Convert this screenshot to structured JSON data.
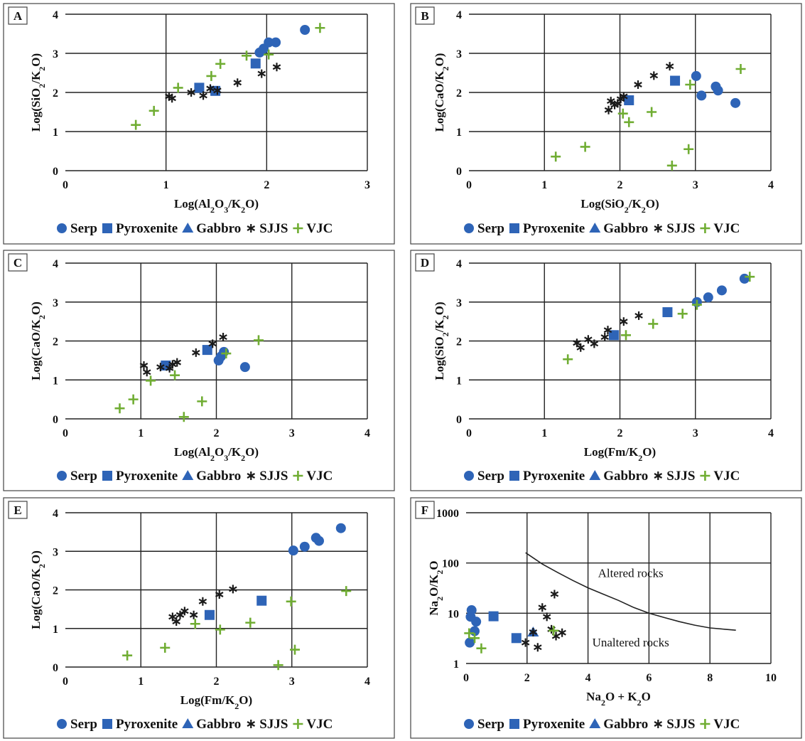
{
  "colors": {
    "serp": "#2e64b7",
    "pyroxenite": "#2e64b7",
    "gabbro": "#2e64b7",
    "sjjs": "#1a1a1a",
    "vjc": "#70ad33"
  },
  "legend": [
    {
      "key": "serp",
      "label": "Serp",
      "marker": "circle"
    },
    {
      "key": "pyroxenite",
      "label": "Pyroxenite",
      "marker": "square"
    },
    {
      "key": "gabbro",
      "label": "Gabbro",
      "marker": "triangle"
    },
    {
      "key": "sjjs",
      "label": "SJJS",
      "marker": "asterisk"
    },
    {
      "key": "vjc",
      "label": "VJC",
      "marker": "plus"
    }
  ],
  "chart_data": [
    {
      "panel": "A",
      "type": "scatter",
      "xlabel_parts": [
        [
          "Log(Al",
          ""
        ],
        [
          "2",
          "sub"
        ],
        [
          "O",
          ""
        ],
        [
          "3",
          "sub"
        ],
        [
          "/K",
          ""
        ],
        [
          "2",
          "sub"
        ],
        [
          "O)",
          ""
        ]
      ],
      "ylabel_parts": [
        [
          "Log(SiO",
          ""
        ],
        [
          "2",
          "sub"
        ],
        [
          "/K",
          ""
        ],
        [
          "2",
          "sub"
        ],
        [
          "O)",
          ""
        ]
      ],
      "xlim": [
        0,
        3
      ],
      "ylim": [
        0,
        4
      ],
      "xticks": [
        "0",
        "1",
        "2",
        "3"
      ],
      "yticks": [
        "0",
        "1",
        "2",
        "3",
        "4"
      ],
      "grid": true,
      "legend_position": "bottom",
      "series": [
        {
          "key": "serp",
          "points": [
            [
              1.93,
              3.02
            ],
            [
              1.97,
              3.12
            ],
            [
              2.02,
              3.28
            ],
            [
              2.09,
              3.28
            ],
            [
              2.38,
              3.6
            ]
          ]
        },
        {
          "key": "pyroxenite",
          "points": [
            [
              1.33,
              2.12
            ],
            [
              1.49,
              2.04
            ],
            [
              1.89,
              2.74
            ]
          ]
        },
        {
          "key": "sjjs",
          "points": [
            [
              1.03,
              1.9
            ],
            [
              1.06,
              1.85
            ],
            [
              1.25,
              2.0
            ],
            [
              1.37,
              1.92
            ],
            [
              1.44,
              2.1
            ],
            [
              1.51,
              2.05
            ],
            [
              1.71,
              2.25
            ],
            [
              1.95,
              2.48
            ],
            [
              2.1,
              2.65
            ]
          ]
        },
        {
          "key": "vjc",
          "points": [
            [
              0.7,
              1.17
            ],
            [
              0.88,
              1.53
            ],
            [
              1.12,
              2.12
            ],
            [
              1.45,
              2.42
            ],
            [
              1.54,
              2.73
            ],
            [
              1.8,
              2.94
            ],
            [
              2.02,
              2.97
            ],
            [
              2.53,
              3.65
            ]
          ]
        }
      ]
    },
    {
      "panel": "B",
      "type": "scatter",
      "xlabel_parts": [
        [
          "Log(SiO",
          ""
        ],
        [
          "2",
          "sub"
        ],
        [
          "/K",
          ""
        ],
        [
          "2",
          "sub"
        ],
        [
          "O)",
          ""
        ]
      ],
      "ylabel_parts": [
        [
          "Log(CaO/K",
          ""
        ],
        [
          "2",
          "sub"
        ],
        [
          "O)",
          ""
        ]
      ],
      "xlim": [
        0,
        4
      ],
      "ylim": [
        0,
        4
      ],
      "xticks": [
        "0",
        "1",
        "2",
        "3",
        "4"
      ],
      "yticks": [
        "0",
        "1",
        "2",
        "3",
        "4"
      ],
      "grid": true,
      "legend_position": "bottom",
      "series": [
        {
          "key": "serp",
          "points": [
            [
              3.01,
              2.42
            ],
            [
              3.08,
              1.92
            ],
            [
              3.27,
              2.15
            ],
            [
              3.3,
              2.05
            ],
            [
              3.53,
              1.73
            ]
          ]
        },
        {
          "key": "pyroxenite",
          "points": [
            [
              2.12,
              1.8
            ],
            [
              2.73,
              2.3
            ]
          ]
        },
        {
          "key": "sjjs",
          "points": [
            [
              1.85,
              1.55
            ],
            [
              1.88,
              1.78
            ],
            [
              1.93,
              1.68
            ],
            [
              1.97,
              1.72
            ],
            [
              2.01,
              1.83
            ],
            [
              2.05,
              1.9
            ],
            [
              2.24,
              2.2
            ],
            [
              2.45,
              2.43
            ],
            [
              2.66,
              2.67
            ]
          ]
        },
        {
          "key": "vjc",
          "points": [
            [
              1.15,
              0.36
            ],
            [
              1.54,
              0.61
            ],
            [
              2.04,
              1.46
            ],
            [
              2.12,
              1.24
            ],
            [
              2.42,
              1.5
            ],
            [
              2.69,
              0.13
            ],
            [
              2.91,
              0.55
            ],
            [
              2.93,
              2.2
            ],
            [
              3.6,
              2.6
            ]
          ]
        }
      ]
    },
    {
      "panel": "C",
      "type": "scatter",
      "xlabel_parts": [
        [
          "Log(Al",
          ""
        ],
        [
          "2",
          "sub"
        ],
        [
          "O",
          ""
        ],
        [
          "3",
          "sub"
        ],
        [
          "/K",
          ""
        ],
        [
          "2",
          "sub"
        ],
        [
          "O)",
          ""
        ]
      ],
      "ylabel_parts": [
        [
          "Log(CaO/K",
          ""
        ],
        [
          "2",
          "sub"
        ],
        [
          "O)",
          ""
        ]
      ],
      "xlim": [
        0,
        4
      ],
      "ylim": [
        0,
        4
      ],
      "xticks": [
        "0",
        "1",
        "2",
        "3",
        "4"
      ],
      "yticks": [
        "0",
        "1",
        "2",
        "3",
        "4"
      ],
      "grid": true,
      "legend_position": "bottom",
      "series": [
        {
          "key": "serp",
          "points": [
            [
              2.03,
              1.5
            ],
            [
              2.06,
              1.6
            ],
            [
              2.1,
              1.72
            ],
            [
              2.38,
              1.33
            ]
          ]
        },
        {
          "key": "pyroxenite",
          "points": [
            [
              1.33,
              1.37
            ],
            [
              1.88,
              1.77
            ]
          ]
        },
        {
          "key": "sjjs",
          "points": [
            [
              1.04,
              1.37
            ],
            [
              1.08,
              1.2
            ],
            [
              1.26,
              1.33
            ],
            [
              1.38,
              1.3
            ],
            [
              1.42,
              1.4
            ],
            [
              1.48,
              1.45
            ],
            [
              1.73,
              1.7
            ],
            [
              1.95,
              1.93
            ],
            [
              2.09,
              2.1
            ]
          ]
        },
        {
          "key": "vjc",
          "points": [
            [
              0.72,
              0.27
            ],
            [
              0.9,
              0.5
            ],
            [
              1.13,
              0.98
            ],
            [
              1.45,
              1.12
            ],
            [
              1.57,
              0.05
            ],
            [
              1.81,
              0.45
            ],
            [
              2.13,
              1.68
            ],
            [
              2.56,
              2.02
            ]
          ]
        }
      ]
    },
    {
      "panel": "D",
      "type": "scatter",
      "xlabel_parts": [
        [
          "Log(Fm/K",
          ""
        ],
        [
          "2",
          "sub"
        ],
        [
          "O)",
          ""
        ]
      ],
      "ylabel_parts": [
        [
          "Log(SiO",
          ""
        ],
        [
          "2",
          "sub"
        ],
        [
          "/K",
          ""
        ],
        [
          "2",
          "sub"
        ],
        [
          "O)",
          ""
        ]
      ],
      "xlim": [
        0,
        4
      ],
      "ylim": [
        0,
        4
      ],
      "xticks": [
        "0",
        "1",
        "2",
        "3",
        "4"
      ],
      "yticks": [
        "0",
        "1",
        "2",
        "3",
        "4"
      ],
      "grid": true,
      "legend_position": "bottom",
      "series": [
        {
          "key": "serp",
          "points": [
            [
              3.02,
              3.0
            ],
            [
              3.17,
              3.12
            ],
            [
              3.35,
              3.3
            ],
            [
              3.65,
              3.6
            ]
          ]
        },
        {
          "key": "pyroxenite",
          "points": [
            [
              1.92,
              2.15
            ],
            [
              2.63,
              2.74
            ]
          ]
        },
        {
          "key": "sjjs",
          "points": [
            [
              1.43,
              1.95
            ],
            [
              1.48,
              1.83
            ],
            [
              1.58,
              2.04
            ],
            [
              1.66,
              1.93
            ],
            [
              1.8,
              2.1
            ],
            [
              1.84,
              2.28
            ],
            [
              2.05,
              2.5
            ],
            [
              2.25,
              2.65
            ]
          ]
        },
        {
          "key": "vjc",
          "points": [
            [
              1.31,
              1.53
            ],
            [
              2.08,
              2.15
            ],
            [
              2.44,
              2.44
            ],
            [
              2.83,
              2.7
            ],
            [
              3.02,
              2.93
            ],
            [
              3.72,
              3.65
            ]
          ]
        }
      ]
    },
    {
      "panel": "E",
      "type": "scatter",
      "xlabel_parts": [
        [
          "Log(Fm/K",
          ""
        ],
        [
          "2",
          "sub"
        ],
        [
          "O)",
          ""
        ]
      ],
      "ylabel_parts": [
        [
          "Log(CaO/K",
          ""
        ],
        [
          "2",
          "sub"
        ],
        [
          "O)",
          ""
        ]
      ],
      "xlim": [
        0,
        4
      ],
      "ylim": [
        0,
        4
      ],
      "xticks": [
        "0",
        "1",
        "2",
        "3",
        "4"
      ],
      "yticks": [
        "0",
        "1",
        "2",
        "3",
        "4"
      ],
      "grid": true,
      "legend_position": "bottom",
      "series": [
        {
          "key": "serp",
          "points": [
            [
              3.02,
              3.02
            ],
            [
              3.17,
              3.12
            ],
            [
              3.32,
              3.35
            ],
            [
              3.36,
              3.27
            ],
            [
              3.65,
              3.6
            ]
          ]
        },
        {
          "key": "pyroxenite",
          "points": [
            [
              1.91,
              1.35
            ],
            [
              2.6,
              1.72
            ]
          ]
        },
        {
          "key": "sjjs",
          "points": [
            [
              1.42,
              1.3
            ],
            [
              1.47,
              1.18
            ],
            [
              1.52,
              1.35
            ],
            [
              1.58,
              1.45
            ],
            [
              1.7,
              1.35
            ],
            [
              1.82,
              1.7
            ],
            [
              2.04,
              1.88
            ],
            [
              2.22,
              2.02
            ]
          ]
        },
        {
          "key": "vjc",
          "points": [
            [
              0.82,
              0.3
            ],
            [
              1.32,
              0.5
            ],
            [
              1.72,
              1.12
            ],
            [
              2.05,
              0.97
            ],
            [
              2.45,
              1.15
            ],
            [
              2.82,
              0.05
            ],
            [
              2.99,
              1.7
            ],
            [
              3.04,
              0.45
            ],
            [
              3.72,
              1.97
            ]
          ]
        }
      ]
    },
    {
      "panel": "F",
      "type": "scatter",
      "xlabel_parts": [
        [
          "Na",
          ""
        ],
        [
          "2",
          "sub"
        ],
        [
          "O + K",
          ""
        ],
        [
          "2",
          "sub"
        ],
        [
          "O",
          ""
        ]
      ],
      "ylabel_parts": [
        [
          "Na",
          ""
        ],
        [
          "2",
          "sub"
        ],
        [
          "O/K",
          ""
        ],
        [
          "2",
          "sub"
        ],
        [
          "O",
          ""
        ]
      ],
      "xlim": [
        0,
        10
      ],
      "ylim": [
        1,
        1000
      ],
      "yscale": "log",
      "xticks": [
        "0",
        "2",
        "4",
        "6",
        "8",
        "10"
      ],
      "yticks": [
        "1",
        "10",
        "100",
        "1000"
      ],
      "grid": true,
      "legend_position": "bottom",
      "series": [
        {
          "key": "serp",
          "points": [
            [
              0.12,
              2.6
            ],
            [
              0.15,
              8.5
            ],
            [
              0.18,
              11.5
            ],
            [
              0.28,
              4.4
            ],
            [
              0.33,
              6.8
            ]
          ]
        },
        {
          "key": "pyroxenite",
          "points": [
            [
              0.9,
              8.7
            ],
            [
              1.65,
              3.2
            ]
          ]
        },
        {
          "key": "gabbro",
          "points": [
            [
              2.2,
              4.2
            ]
          ]
        },
        {
          "key": "sjjs",
          "points": [
            [
              1.95,
              2.6
            ],
            [
              2.2,
              4.2
            ],
            [
              2.35,
              2.1
            ],
            [
              2.5,
              13
            ],
            [
              2.65,
              8.5
            ],
            [
              2.8,
              4.8
            ],
            [
              2.9,
              24
            ],
            [
              2.95,
              3.5
            ],
            [
              3.15,
              4.1
            ]
          ]
        },
        {
          "key": "vjc",
          "points": [
            [
              0.1,
              4.0
            ],
            [
              0.28,
              3.2
            ],
            [
              0.5,
              2.0
            ],
            [
              2.87,
              4.5
            ]
          ]
        }
      ],
      "curve": [
        [
          1.95,
          160
        ],
        [
          2.5,
          95
        ],
        [
          3,
          65
        ],
        [
          3.5,
          45
        ],
        [
          4,
          32
        ],
        [
          4.5,
          24
        ],
        [
          5,
          18
        ],
        [
          5.5,
          13
        ],
        [
          6,
          10
        ],
        [
          6.5,
          8.2
        ],
        [
          7,
          6.8
        ],
        [
          7.5,
          5.8
        ],
        [
          8,
          5.1
        ],
        [
          8.5,
          4.8
        ],
        [
          8.85,
          4.6
        ]
      ],
      "annotations": [
        {
          "text": "Altered rocks",
          "x": 5.4,
          "y": 52
        },
        {
          "text": "Unaltered rocks",
          "x": 5.4,
          "y": 2.2
        }
      ]
    }
  ]
}
